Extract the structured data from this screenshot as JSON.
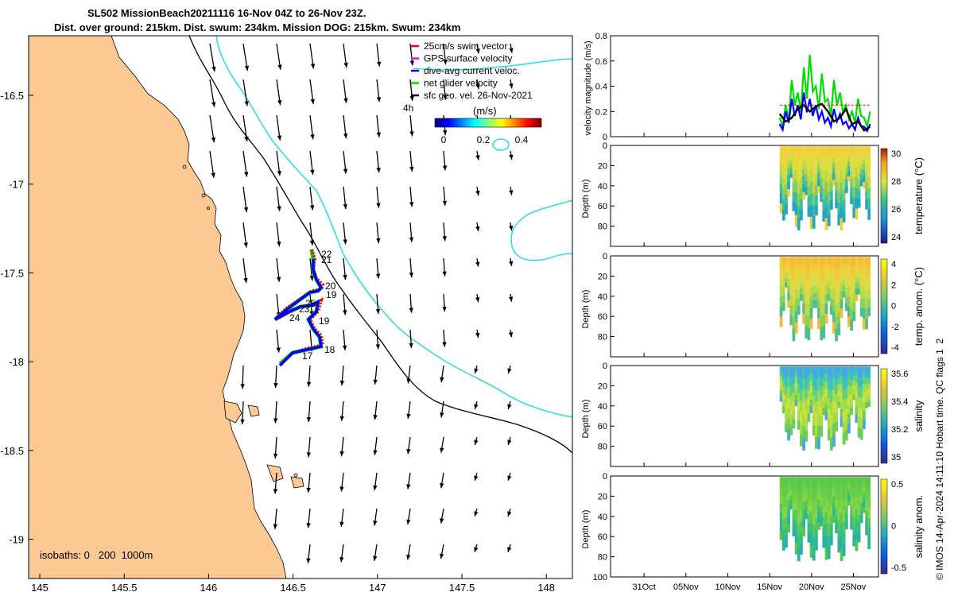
{
  "header": {
    "title_line1": "SL502 MissionBeach20211116 16-Nov 04Z to 26-Nov 23Z.",
    "title_line2": "Dist. over ground: 215km. Dist. swum: 234km. Mission DOG: 215km. Swum: 234km"
  },
  "map": {
    "legend": [
      {
        "label": "25cm/s swim vector",
        "color": "#ff0000"
      },
      {
        "label": "GPS surface velocity",
        "color": "#ff00ff"
      },
      {
        "label": "dive-avg current veloc.",
        "color": "#0000ff"
      },
      {
        "label": "net glider velocity",
        "color": "#00dd00"
      },
      {
        "label": "sfc geo. vel. 26-Nov-2021",
        "color": "#000000"
      }
    ],
    "time_label": "4h",
    "colorbar_title": "(m/s)",
    "colorbar_ticks": [
      "0",
      "0.2",
      "0.4"
    ],
    "isobath_note": "isobaths: 0   200  1000m",
    "x_ticks": [
      "145",
      "145.5",
      "146",
      "146.5",
      "147",
      "147.5",
      "148"
    ],
    "y_ticks": [
      "-16.5",
      "-17",
      "-17.5",
      "-18",
      "-18.5",
      "-19"
    ],
    "day_labels": [
      "22",
      "21",
      "20",
      "19",
      "25",
      "24",
      "23",
      "19",
      "18",
      "17"
    ],
    "colors": {
      "land": "#fcc994",
      "isobath_200": "#000000",
      "isobath_1000": "#33dddd"
    }
  },
  "chart_data": [
    {
      "type": "line",
      "ylabel": "velocity magnitude (m/s)",
      "y_ticks": [
        "0",
        "0.2",
        "0.4",
        "0.6",
        "0.8"
      ],
      "ylim": [
        0,
        0.8
      ],
      "series": [
        {
          "color": "#00dd00",
          "values": [
            0.15,
            0.25,
            0.45,
            0.35,
            0.55,
            0.65,
            0.4,
            0.5,
            0.3,
            0.45,
            0.35,
            0.25,
            0.2,
            0.3,
            0.15,
            0.2
          ]
        },
        {
          "color": "#0000ff",
          "values": [
            0.1,
            0.2,
            0.3,
            0.25,
            0.35,
            0.3,
            0.25,
            0.2,
            0.15,
            0.22,
            0.18,
            0.12,
            0.1,
            0.15,
            0.08,
            0.1
          ]
        },
        {
          "color": "#000000",
          "values": [
            0.18,
            0.12,
            0.15,
            0.22,
            0.25,
            0.2,
            0.24,
            0.26,
            0.2,
            0.12,
            0.15,
            0.22,
            0.1,
            0.12,
            0.05,
            0.08
          ]
        },
        {
          "color": "#ff0000",
          "values": [
            0.25,
            0.25,
            0.25,
            0.25,
            0.25,
            0.25,
            0.25,
            0.25,
            0.25,
            0.25,
            0.25,
            0.25,
            0.25,
            0.25,
            0.25,
            0.25
          ]
        }
      ]
    },
    {
      "type": "heatmap",
      "ylabel": "Depth (m)",
      "y_ticks": [
        "0",
        "20",
        "40",
        "60",
        "80"
      ],
      "colorbar_label": "temperature (°C)",
      "colorbar_ticks": [
        "30",
        "28",
        "26",
        "24"
      ],
      "clim": [
        23,
        30.5
      ]
    },
    {
      "type": "heatmap",
      "ylabel": "Depth (m)",
      "y_ticks": [
        "0",
        "20",
        "40",
        "60",
        "80"
      ],
      "colorbar_label": "temp. anom. (°C)",
      "colorbar_ticks": [
        "4",
        "2",
        "0",
        "-2",
        "-4"
      ],
      "clim": [
        -4,
        4
      ]
    },
    {
      "type": "heatmap",
      "ylabel": "Depth (m)",
      "y_ticks": [
        "0",
        "20",
        "40",
        "60",
        "80"
      ],
      "colorbar_label": "salinity",
      "colorbar_ticks": [
        "35.6",
        "35.4",
        "35.2",
        "35"
      ],
      "clim": [
        34.95,
        35.7
      ]
    },
    {
      "type": "heatmap",
      "ylabel": "Depth (m)",
      "y_ticks": [
        "0",
        "20",
        "40",
        "60",
        "80",
        "100"
      ],
      "colorbar_label": "salinity anom.",
      "colorbar_ticks": [
        "0.5",
        "0",
        "-0.5"
      ],
      "clim": [
        -0.5,
        0.5
      ]
    }
  ],
  "time_axis": {
    "labels": [
      "31Oct",
      "05Nov",
      "10Nov",
      "15Nov",
      "20Nov",
      "25Nov"
    ]
  },
  "footer": {
    "stamp": "© IMOS 14-Apr-2024 14:11:10 Hobart time. QC flags 1  2"
  }
}
